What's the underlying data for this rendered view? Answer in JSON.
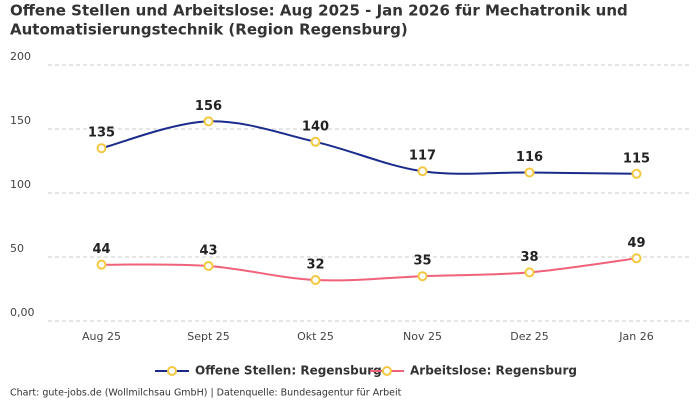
{
  "chart_data": {
    "type": "line",
    "title": [
      "Offene Stellen und Arbeitslose: Aug 2025 - Jan 2026 für Mechatronik und",
      "Automatisierungstechnik (Region Regensburg)"
    ],
    "categories": [
      "Aug 25",
      "Sept 25",
      "Okt 25",
      "Nov 25",
      "Dez 25",
      "Jan 26"
    ],
    "series": [
      {
        "name": "Offene Stellen: Regensburg",
        "color": "#1a2b8c",
        "values": [
          135,
          156,
          140,
          117,
          116,
          115
        ]
      },
      {
        "name": "Arbeitslose: Regensburg",
        "color": "#f0627a",
        "values": [
          44,
          43,
          32,
          35,
          38,
          49
        ]
      }
    ],
    "marker_color": "#f5c842",
    "ylim": [
      0,
      200
    ],
    "yticks": [
      {
        "value": 0,
        "label": "0,00"
      },
      50,
      100,
      150,
      200
    ],
    "grid": true,
    "legend": "bottom",
    "source": "Chart: gute-jobs.de (Wollmilchsau GmbH) | Datenquelle: Bundesagentur für Arbeit"
  }
}
